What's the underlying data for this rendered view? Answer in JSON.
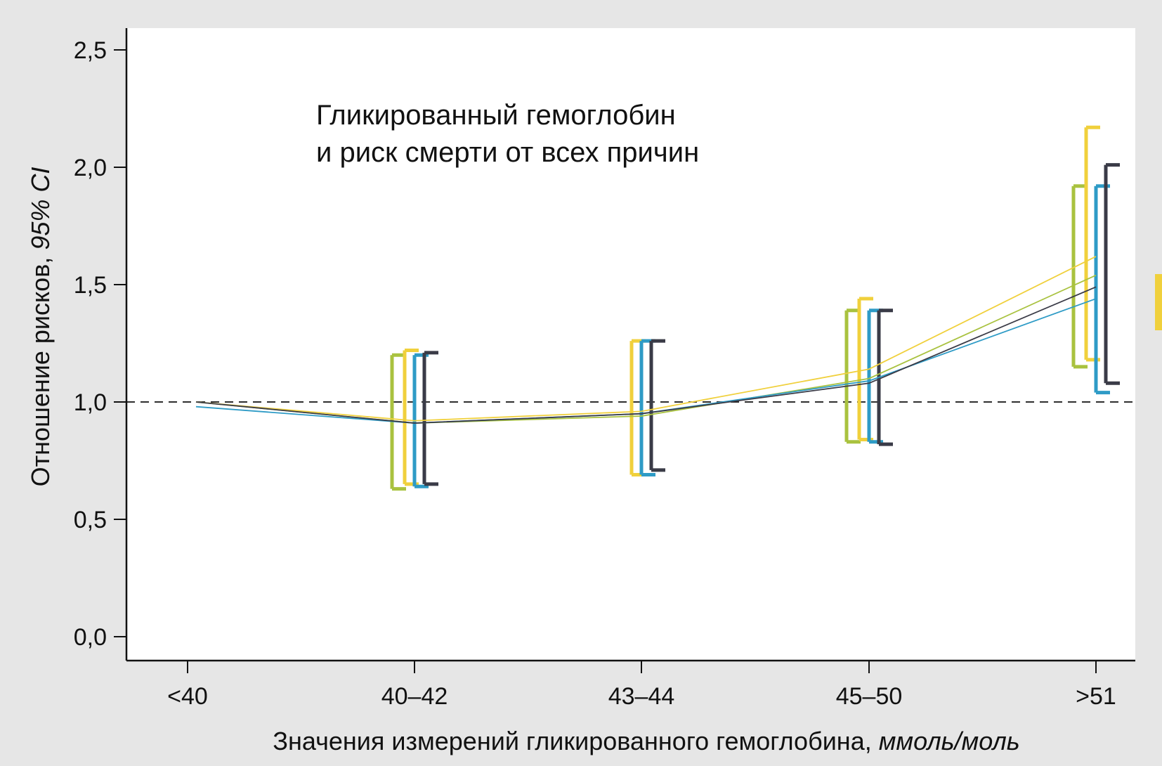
{
  "chart_data": {
    "type": "line",
    "title_lines": [
      "Гликированный гемоглобин",
      "и риск смерти от всех причин"
    ],
    "xlabel": "Значения измерений гликированного гемоглобина,",
    "xlabel_unit": "ммоль/моль",
    "ylabel": "Отношение рисков,",
    "ylabel_unit": "95% CI",
    "categories": [
      "<40",
      "40–42",
      "43–44",
      "45–50",
      ">51"
    ],
    "y_ticks": [
      0,
      0.5,
      1,
      1.5,
      2,
      2.5
    ],
    "y_tick_labels": [
      "0,0",
      "0,5",
      "1,0",
      "1,5",
      "2,0",
      "2,5"
    ],
    "ylim": [
      -0.1,
      2.6
    ],
    "reference_line": 1.0,
    "grid": false,
    "series": [
      {
        "color": "#a9c23f",
        "values": [
          1.0,
          0.91,
          0.94,
          1.1,
          1.54
        ],
        "ci_low": [
          null,
          0.63,
          null,
          0.83,
          1.15
        ],
        "ci_high": [
          null,
          1.2,
          null,
          1.39,
          1.92
        ]
      },
      {
        "color": "#f0d03c",
        "values": [
          1.0,
          0.92,
          0.96,
          1.14,
          1.62
        ],
        "ci_low": [
          null,
          0.65,
          0.69,
          0.84,
          1.18
        ],
        "ci_high": [
          null,
          1.22,
          1.26,
          1.44,
          2.17
        ]
      },
      {
        "color": "#2e9bc6",
        "values": [
          0.98,
          0.91,
          0.95,
          1.09,
          1.44
        ],
        "ci_low": [
          null,
          0.64,
          0.69,
          0.83,
          1.04
        ],
        "ci_high": [
          null,
          1.2,
          1.26,
          1.39,
          1.92
        ]
      },
      {
        "color": "#3a3b47",
        "values": [
          1.0,
          0.91,
          0.95,
          1.08,
          1.49
        ],
        "ci_low": [
          null,
          0.65,
          0.71,
          0.82,
          1.08
        ],
        "ci_high": [
          null,
          1.21,
          1.26,
          1.39,
          2.01
        ]
      }
    ]
  }
}
